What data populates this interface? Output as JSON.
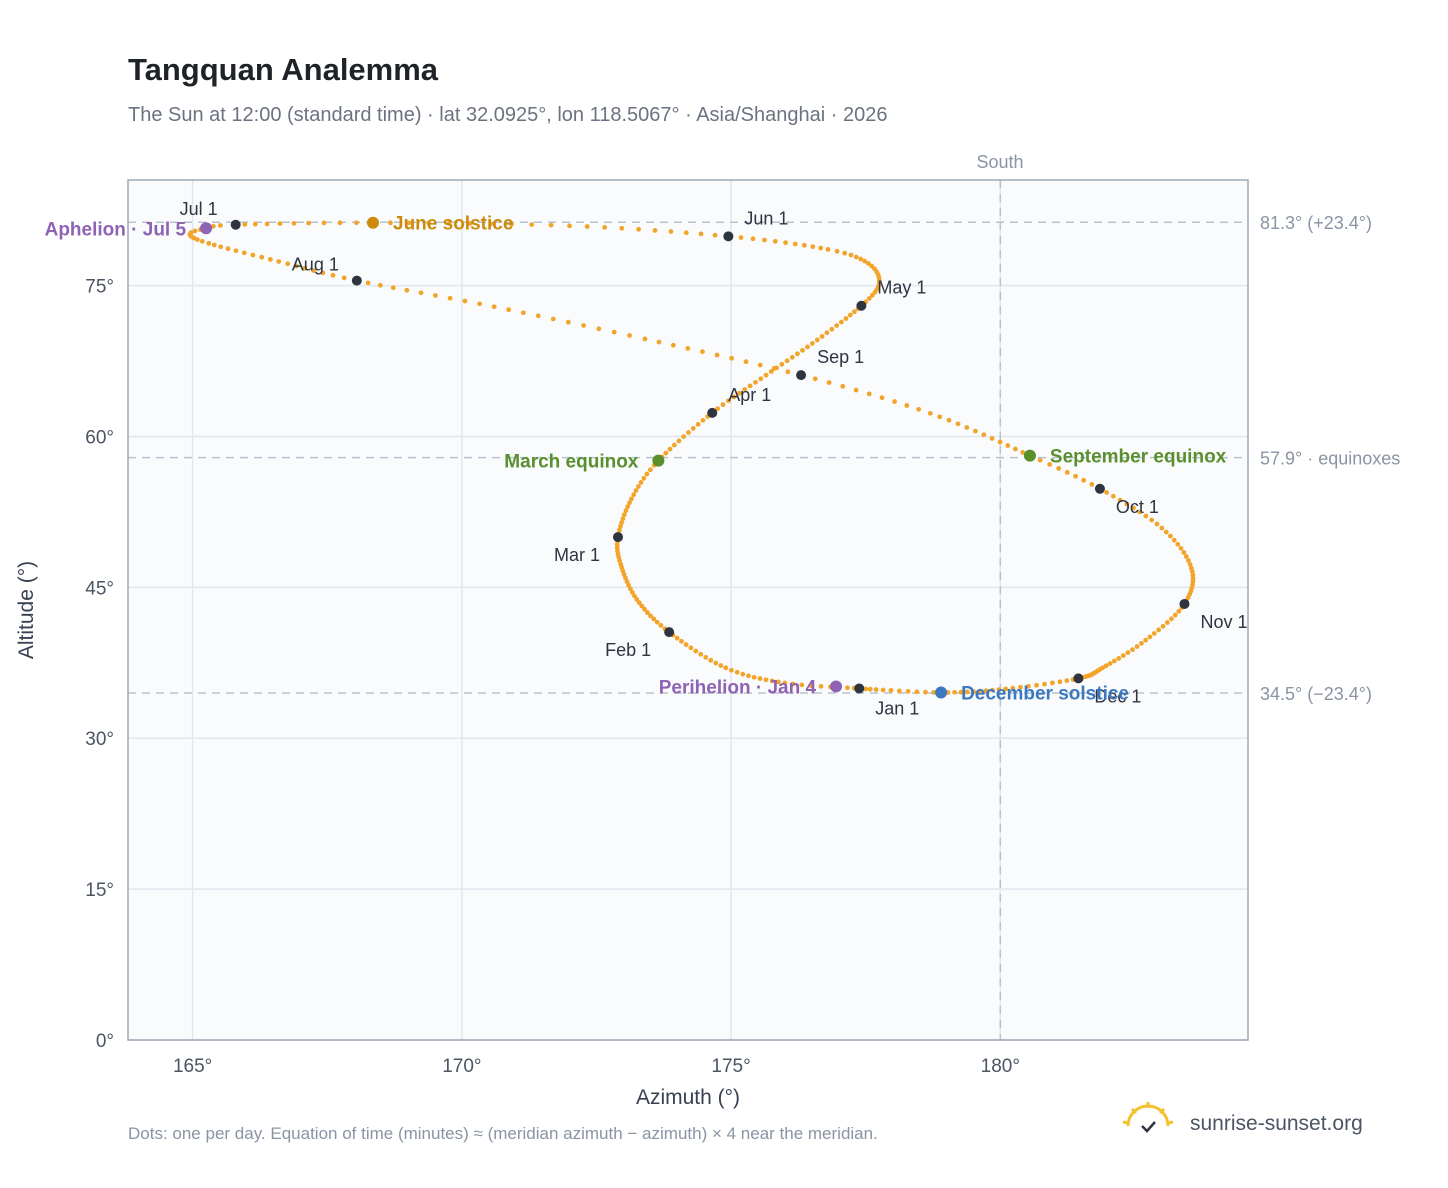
{
  "header": {
    "title": "Tangquan Analemma",
    "subtitle": "The Sun at 12:00 (standard time) · lat 32.0925°, lon 118.5067° · Asia/Shanghai · 2026"
  },
  "footer": {
    "note": "Dots: one per day. Equation of time (minutes) ≈ (meridian azimuth − azimuth) × 4 near the meridian.",
    "brand": "sunrise-sunset.org"
  },
  "chart_data": {
    "type": "scatter",
    "xlabel": "Azimuth (°)",
    "ylabel": "Altitude (°)",
    "xlim": [
      163.8,
      184.6
    ],
    "ylim": [
      0,
      85.5
    ],
    "xticks": [
      {
        "value": 165,
        "label": "165°"
      },
      {
        "value": 170,
        "label": "170°"
      },
      {
        "value": 175,
        "label": "175°"
      },
      {
        "value": 180,
        "label": "180°"
      }
    ],
    "yticks": [
      {
        "value": 0,
        "label": "0°"
      },
      {
        "value": 15,
        "label": "15°"
      },
      {
        "value": 30,
        "label": "30°"
      },
      {
        "value": 45,
        "label": "45°"
      },
      {
        "value": 60,
        "label": "60°"
      },
      {
        "value": 75,
        "label": "75°"
      }
    ],
    "grid": true,
    "meridian": {
      "azimuth": 180,
      "label": "South"
    },
    "reference_lines": [
      {
        "altitude": 81.3,
        "label": "81.3° (+23.4°)"
      },
      {
        "altitude": 57.9,
        "label": "57.9° · equinoxes"
      },
      {
        "altitude": 34.5,
        "label": "34.5° (−23.4°)"
      }
    ],
    "path": [
      {
        "day": 1,
        "az": 177.38,
        "alt": 34.95
      },
      {
        "day": 10,
        "az": 176.0,
        "alt": 35.5
      },
      {
        "day": 20,
        "az": 174.9,
        "alt": 37.0
      },
      {
        "day": 32,
        "az": 173.85,
        "alt": 40.55
      },
      {
        "day": 42,
        "az": 173.25,
        "alt": 43.8
      },
      {
        "day": 52,
        "az": 172.95,
        "alt": 47.3
      },
      {
        "day": 60,
        "az": 172.9,
        "alt": 50.0
      },
      {
        "day": 70,
        "az": 173.15,
        "alt": 53.8
      },
      {
        "day": 79,
        "az": 173.65,
        "alt": 57.6
      },
      {
        "day": 91,
        "az": 174.65,
        "alt": 62.35
      },
      {
        "day": 101,
        "az": 175.65,
        "alt": 66.1
      },
      {
        "day": 111,
        "az": 176.6,
        "alt": 69.6
      },
      {
        "day": 121,
        "az": 177.42,
        "alt": 73.0
      },
      {
        "day": 128,
        "az": 177.75,
        "alt": 75.2
      },
      {
        "day": 135,
        "az": 177.55,
        "alt": 77.2
      },
      {
        "day": 142,
        "az": 176.8,
        "alt": 78.6
      },
      {
        "day": 152,
        "az": 174.95,
        "alt": 79.9
      },
      {
        "day": 162,
        "az": 172.0,
        "alt": 80.95
      },
      {
        "day": 172,
        "az": 168.35,
        "alt": 81.25
      },
      {
        "day": 182,
        "az": 165.8,
        "alt": 81.05
      },
      {
        "day": 186,
        "az": 165.25,
        "alt": 80.7
      },
      {
        "day": 190,
        "az": 164.95,
        "alt": 80.1
      },
      {
        "day": 196,
        "az": 165.3,
        "alt": 79.2
      },
      {
        "day": 205,
        "az": 166.6,
        "alt": 77.4
      },
      {
        "day": 213,
        "az": 168.05,
        "alt": 75.5
      },
      {
        "day": 223,
        "az": 170.6,
        "alt": 72.9
      },
      {
        "day": 233,
        "az": 173.4,
        "alt": 69.7
      },
      {
        "day": 244,
        "az": 176.3,
        "alt": 66.1
      },
      {
        "day": 254,
        "az": 178.7,
        "alt": 62.3
      },
      {
        "day": 266,
        "az": 180.55,
        "alt": 58.1
      },
      {
        "day": 274,
        "az": 181.85,
        "alt": 54.8
      },
      {
        "day": 284,
        "az": 183.0,
        "alt": 50.9
      },
      {
        "day": 294,
        "az": 183.55,
        "alt": 46.9
      },
      {
        "day": 305,
        "az": 183.42,
        "alt": 43.35
      },
      {
        "day": 315,
        "az": 182.7,
        "alt": 39.75
      },
      {
        "day": 325,
        "az": 181.9,
        "alt": 37.0
      },
      {
        "day": 335,
        "az": 181.45,
        "alt": 35.95
      },
      {
        "day": 345,
        "az": 180.1,
        "alt": 34.9
      },
      {
        "day": 355,
        "az": 178.9,
        "alt": 34.55
      },
      {
        "day": 365,
        "az": 177.5,
        "alt": 34.9
      }
    ],
    "months": [
      {
        "label": "Jan 1",
        "az": 177.38,
        "alt": 34.95,
        "anchor": "below"
      },
      {
        "label": "Feb 1",
        "az": 173.85,
        "alt": 40.55,
        "anchor": "below-left"
      },
      {
        "label": "Mar 1",
        "az": 172.9,
        "alt": 50.0,
        "anchor": "left"
      },
      {
        "label": "Apr 1",
        "az": 174.65,
        "alt": 62.35,
        "anchor": "upper-right"
      },
      {
        "label": "May 1",
        "az": 177.42,
        "alt": 73.0,
        "anchor": "upper-right"
      },
      {
        "label": "Jun 1",
        "az": 174.95,
        "alt": 79.9,
        "anchor": "upper-right"
      },
      {
        "label": "Jul 1",
        "az": 165.8,
        "alt": 81.05,
        "anchor": "upper-left"
      },
      {
        "label": "Aug 1",
        "az": 168.05,
        "alt": 75.5,
        "anchor": "upper-left"
      },
      {
        "label": "Sep 1",
        "az": 176.3,
        "alt": 66.1,
        "anchor": "upper-right"
      },
      {
        "label": "Oct 1",
        "az": 181.85,
        "alt": 54.8,
        "anchor": "below-right"
      },
      {
        "label": "Nov 1",
        "az": 183.42,
        "alt": 43.35,
        "anchor": "below-right"
      },
      {
        "label": "Dec 1",
        "az": 181.45,
        "alt": 35.95,
        "anchor": "below-right"
      }
    ],
    "events": [
      {
        "label": "June solstice",
        "az": 168.35,
        "alt": 81.25,
        "color": "#cc8b0a",
        "side": "right"
      },
      {
        "label": "March equinox",
        "az": 173.65,
        "alt": 57.6,
        "color": "#5a8f2e",
        "side": "left"
      },
      {
        "label": "September equinox",
        "az": 180.55,
        "alt": 58.1,
        "color": "#5a8f2e",
        "side": "right"
      },
      {
        "label": "December solstice",
        "az": 178.9,
        "alt": 34.55,
        "color": "#3c78c0",
        "side": "right"
      },
      {
        "label": "Aphelion · Jul 5",
        "az": 165.25,
        "alt": 80.7,
        "color": "#8f63b3",
        "side": "left"
      },
      {
        "label": "Perihelion · Jan 4",
        "az": 176.95,
        "alt": 35.15,
        "color": "#8f63b3",
        "side": "left"
      }
    ],
    "colors": {
      "path": "#f2a52a",
      "month_marker": "#2f3540",
      "plot_bg": "#f9fbfd",
      "frame": "#9ea8b6",
      "grid": "#e2e7ee",
      "reference": "#b7c2cf"
    }
  }
}
